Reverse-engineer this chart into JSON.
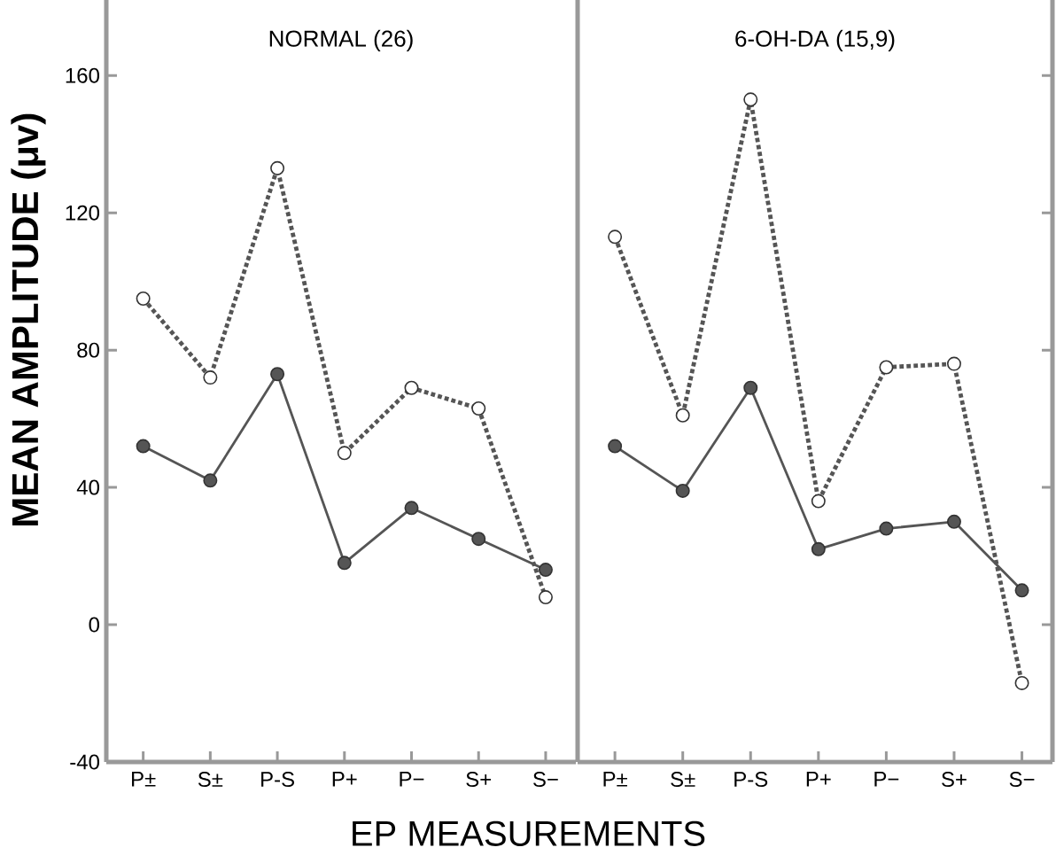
{
  "chart_data": [
    {
      "type": "line",
      "title": "NORMAL (26)",
      "xlabel": "EP MEASUREMENTS",
      "ylabel": "MEAN AMPLITUDE (μv)",
      "categories": [
        "P±",
        "S±",
        "P-S",
        "P+",
        "P−",
        "S+",
        "S−"
      ],
      "ylim": [
        -40,
        182
      ],
      "yticks": [
        -40,
        0,
        40,
        80,
        120,
        160
      ],
      "marker": "circle",
      "series": [
        {
          "color": "#555555",
          "line_style": "dotted",
          "values": [
            95,
            72,
            133,
            50,
            69,
            63,
            8
          ]
        },
        {
          "color": "#555555",
          "line_style": "solid",
          "values": [
            52,
            42,
            73,
            18,
            34,
            25,
            16
          ]
        }
      ]
    },
    {
      "type": "line",
      "title": "6-OH-DA (15,9)",
      "categories": [
        "P±",
        "S±",
        "P-S",
        "P+",
        "P−",
        "S+",
        "S−"
      ],
      "ylim": [
        -40,
        182
      ],
      "yticks": [
        -40,
        0,
        40,
        80,
        120,
        160
      ],
      "tick_labels": "x",
      "marker": "circle",
      "series": [
        {
          "color": "#555555",
          "line_style": "dotted",
          "values": [
            113,
            61,
            153,
            36,
            75,
            76,
            -17
          ]
        },
        {
          "color": "#555555",
          "line_style": "solid",
          "values": [
            52,
            39,
            69,
            22,
            28,
            30,
            10
          ]
        }
      ]
    }
  ]
}
